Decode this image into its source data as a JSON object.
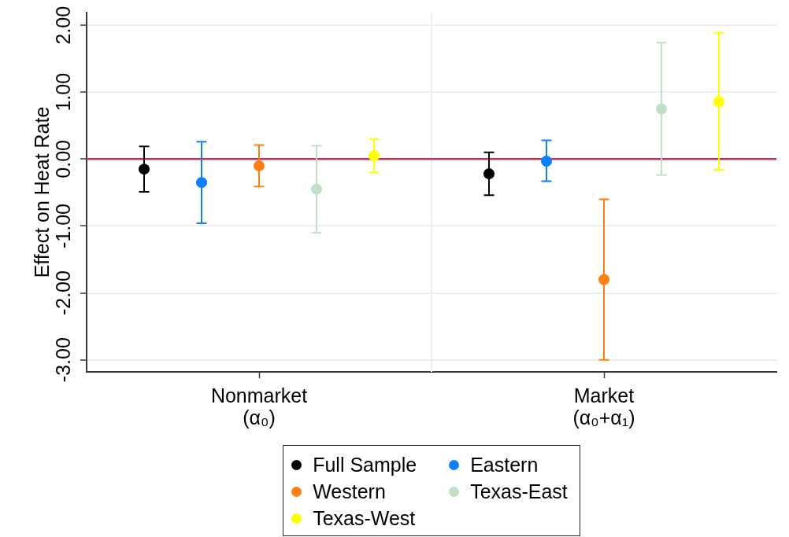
{
  "chart_data": {
    "type": "scatter",
    "ylabel": "Effect on Heat Rate",
    "categories": [
      "Nonmarket\n(α₀)",
      "Market\n(α₀+α₁)"
    ],
    "series": [
      {
        "name": "Full Sample",
        "color": "#000000",
        "values": [
          -0.15,
          -0.22
        ],
        "errors": [
          [
            -0.49,
            0.19
          ],
          [
            -0.54,
            0.1
          ]
        ]
      },
      {
        "name": "Eastern",
        "color": "#0d80ff",
        "values": [
          -0.35,
          -0.03
        ],
        "errors": [
          [
            -0.96,
            0.26
          ],
          [
            -0.33,
            0.28
          ]
        ]
      },
      {
        "name": "Western",
        "color": "#ff8010",
        "values": [
          -0.1,
          -1.8
        ],
        "errors": [
          [
            -0.41,
            0.21
          ],
          [
            -3.0,
            -0.6
          ]
        ]
      },
      {
        "name": "Texas-East",
        "color": "#c2dfc5",
        "values": [
          -0.45,
          0.75
        ],
        "errors": [
          [
            -1.1,
            0.2
          ],
          [
            -0.24,
            1.74
          ]
        ]
      },
      {
        "name": "Texas-West",
        "color": "#ffff00",
        "values": [
          0.05,
          0.86
        ],
        "errors": [
          [
            -0.2,
            0.3
          ],
          [
            -0.16,
            1.89
          ]
        ]
      }
    ],
    "ylim": [
      -3.18,
      2.19
    ],
    "yticks": [
      {
        "value": -3,
        "label": "-3.00"
      },
      {
        "value": -2,
        "label": "-2.00"
      },
      {
        "value": -1,
        "label": "-1.00"
      },
      {
        "value": 0,
        "label": "0.00"
      },
      {
        "value": 1,
        "label": "1.00"
      },
      {
        "value": 2,
        "label": "2.00"
      }
    ],
    "ref_lines": [
      {
        "axis": "y",
        "value": 0,
        "color": "#d02c55"
      }
    ],
    "grid": true,
    "legend": "bottom",
    "marker": "circle"
  }
}
